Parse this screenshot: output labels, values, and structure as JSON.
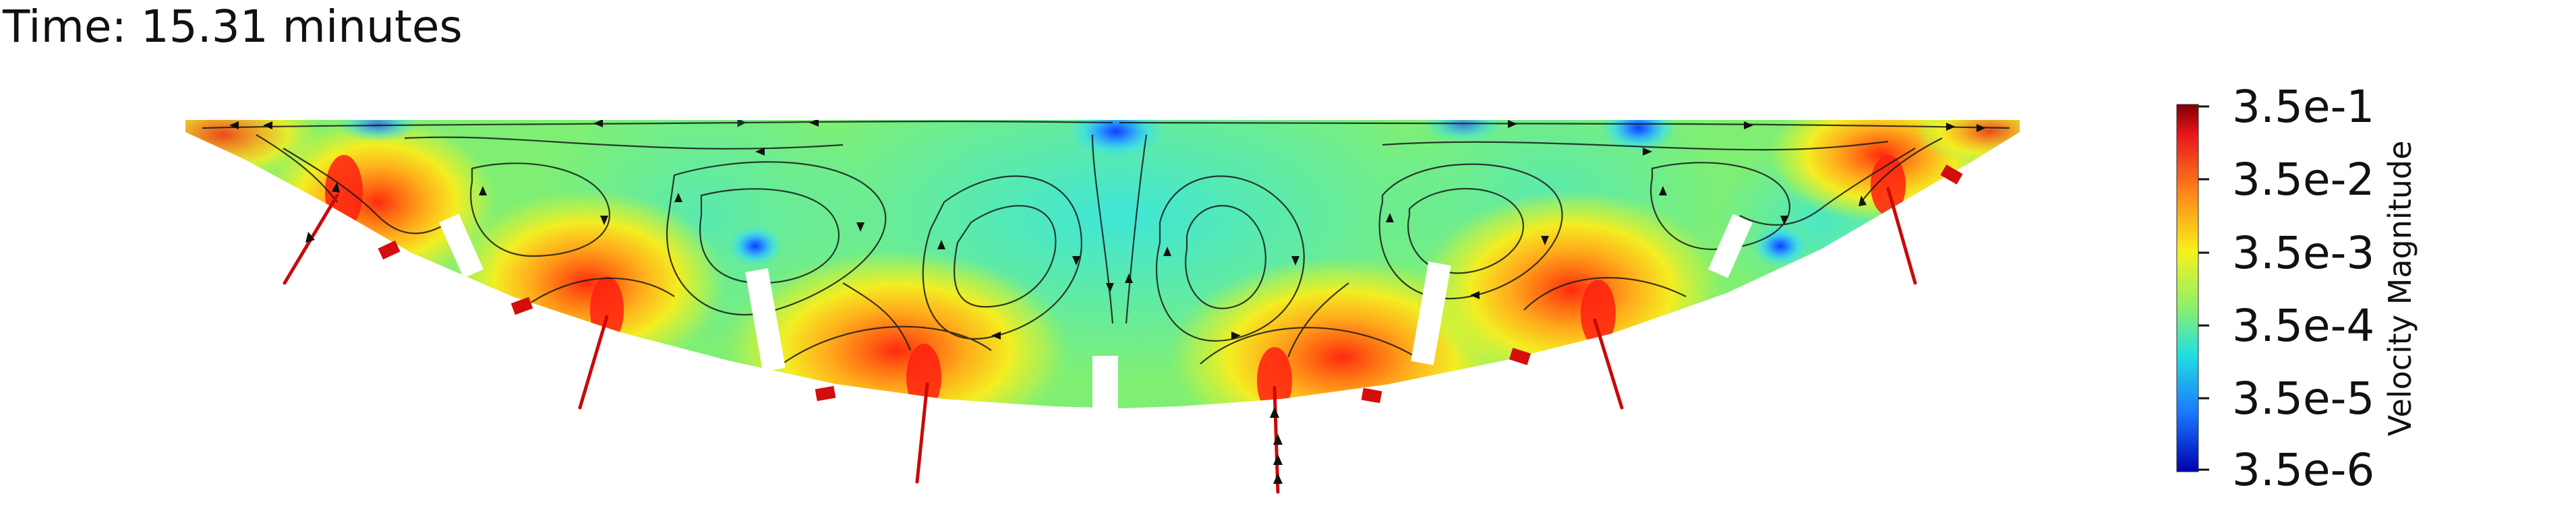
{
  "time_label": "Time: 15.31 minutes",
  "colorbar": {
    "title": "Velocity Magnitude",
    "ticks": [
      "3.5e-1",
      "3.5e-2",
      "3.5e-3",
      "3.5e-4",
      "3.5e-5",
      "3.5e-6"
    ],
    "scale": "log",
    "colors": [
      "#7f0000",
      "#e8141c",
      "#ff8c1a",
      "#f6f21c",
      "#8ff068",
      "#22e0e0",
      "#1a78ff",
      "#0000b0"
    ]
  },
  "colors": {
    "background": "#ffffff",
    "streamline": "#1a1a1a",
    "inlet_jet": "#c80a0a",
    "baffle": "#ffffff"
  }
}
